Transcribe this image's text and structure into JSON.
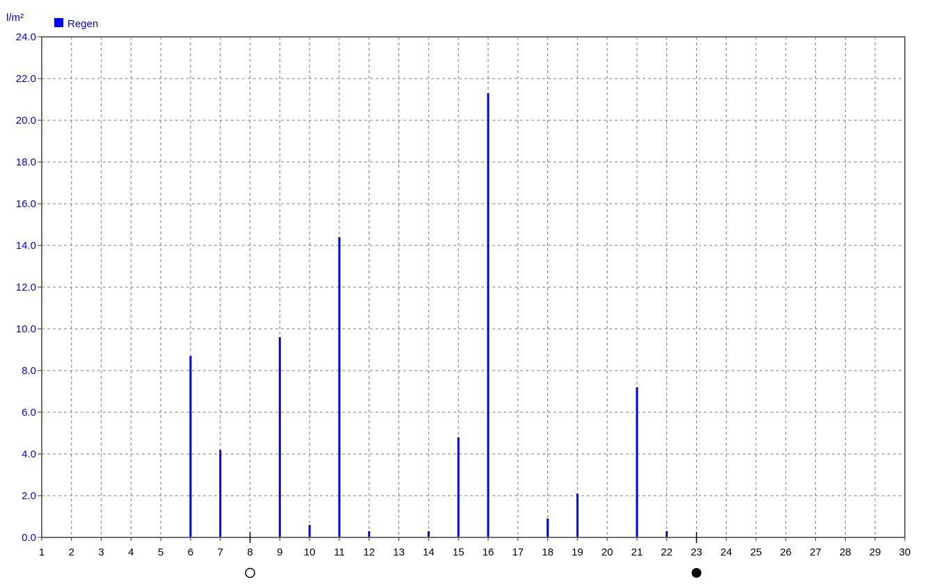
{
  "chart_data": {
    "type": "bar",
    "unit_label": "l/m²",
    "legend": {
      "position": "top-left",
      "entries": [
        {
          "name": "Regen",
          "color": "#0000ff"
        }
      ]
    },
    "series": [
      {
        "name": "Regen",
        "color": "#0000ff",
        "values": [
          {
            "x": 6,
            "y": 8.7
          },
          {
            "x": 7,
            "y": 4.2
          },
          {
            "x": 9,
            "y": 9.6
          },
          {
            "x": 10,
            "y": 0.6
          },
          {
            "x": 11,
            "y": 14.4
          },
          {
            "x": 12,
            "y": 0.3
          },
          {
            "x": 14,
            "y": 0.3
          },
          {
            "x": 15,
            "y": 4.8
          },
          {
            "x": 16,
            "y": 21.3
          },
          {
            "x": 18,
            "y": 0.9
          },
          {
            "x": 19,
            "y": 2.1
          },
          {
            "x": 21,
            "y": 7.2
          },
          {
            "x": 22,
            "y": 0.3
          }
        ]
      }
    ],
    "x_ticks": [
      "1",
      "2",
      "3",
      "4",
      "5",
      "6",
      "7",
      "8",
      "9",
      "10",
      "11",
      "12",
      "13",
      "14",
      "15",
      "16",
      "17",
      "18",
      "19",
      "20",
      "21",
      "22",
      "23",
      "24",
      "25",
      "26",
      "27",
      "28",
      "29",
      "30"
    ],
    "y_ticks": [
      "0.0",
      "2.0",
      "4.0",
      "6.0",
      "8.0",
      "10.0",
      "12.0",
      "14.0",
      "16.0",
      "18.0",
      "20.0",
      "22.0",
      "24.0"
    ],
    "xlim": [
      1,
      30
    ],
    "ylim": [
      0,
      24
    ],
    "grid": true,
    "moon_phases": [
      {
        "x": 8,
        "phase": "full-moon"
      },
      {
        "x": 23,
        "phase": "new-moon"
      }
    ]
  }
}
